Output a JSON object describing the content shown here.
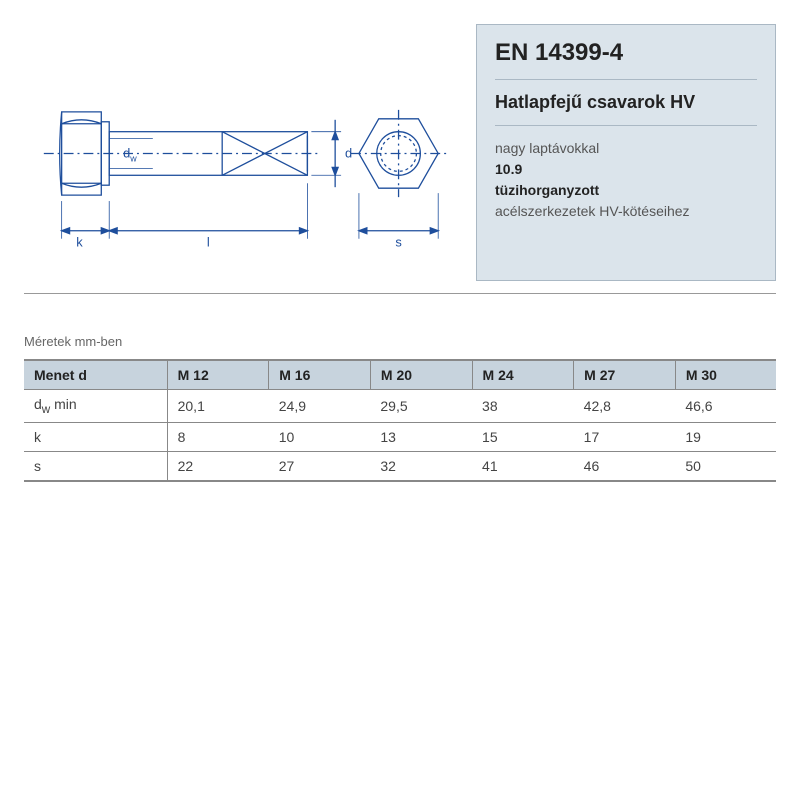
{
  "info": {
    "standard": "EN 14399-4",
    "subtitle": "Hatlapfejű csavarok HV",
    "line1": "nagy laptávokkal",
    "grade": "10.9",
    "line3": "tüzihorganyzott",
    "line4": "acélszerkezetek HV-kötéseihez",
    "box_bg": "#dbe4eb",
    "box_border": "#aab8c4"
  },
  "diagram": {
    "stroke": "#1e4e9c",
    "stroke_width": 1.2,
    "label_dw": "d",
    "label_dw_sub": "w",
    "label_k": "k",
    "label_l": "l",
    "label_d": "d",
    "label_s": "s"
  },
  "table": {
    "caption": "Méretek mm-ben",
    "header_bg": "#c7d3dd",
    "border_color": "#888",
    "columns": [
      "Menet d",
      "M 12",
      "M 16",
      "M 20",
      "M 24",
      "M 27",
      "M 30"
    ],
    "rows": [
      {
        "label_html": "d<sub>w</sub> min",
        "plain": "dw min",
        "values": [
          "20,1",
          "24,9",
          "29,5",
          "38",
          "42,8",
          "46,6"
        ]
      },
      {
        "label_html": "k",
        "plain": "k",
        "values": [
          "8",
          "10",
          "13",
          "15",
          "17",
          "19"
        ]
      },
      {
        "label_html": "s",
        "plain": "s",
        "values": [
          "22",
          "27",
          "32",
          "41",
          "46",
          "50"
        ]
      }
    ]
  }
}
